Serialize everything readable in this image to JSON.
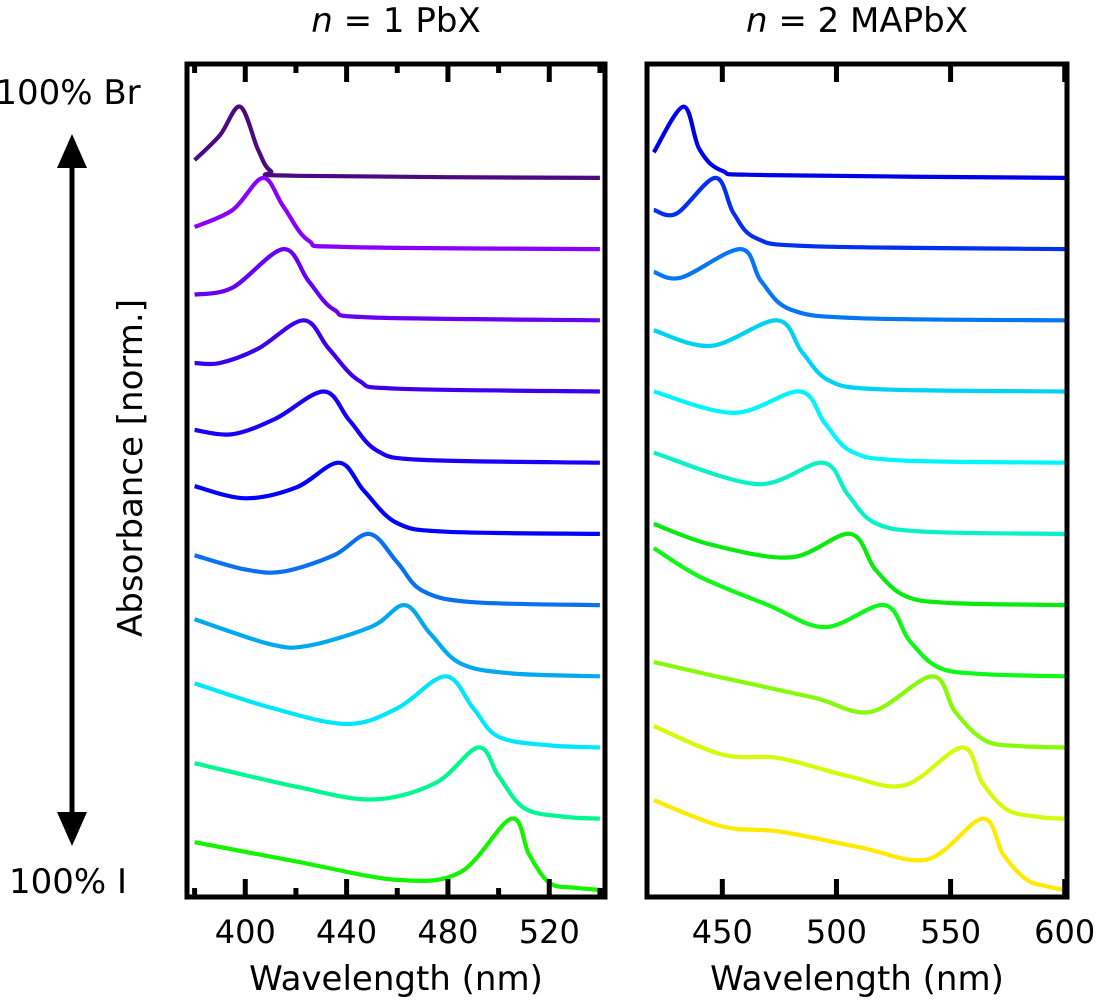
{
  "labels": {
    "top_composition": "100% Br",
    "bottom_composition": "100% I",
    "ylabel": "Absorbance [norm.]"
  },
  "chart_data": [
    {
      "type": "line",
      "title_italic": "n",
      "title_rest": " = 1 PbX",
      "xlabel": "Wavelength (nm)",
      "ylabel": "Absorbance [norm.]",
      "xlim": [
        377,
        542
      ],
      "ylim": [
        -0.1,
        11.6
      ],
      "xticks": [
        400,
        440,
        480,
        520
      ],
      "xminor": [
        380,
        420,
        460,
        500,
        540
      ],
      "stacked_offset": 1,
      "series": [
        {
          "color": "#4b0a82",
          "peak_nm": 398,
          "points": [
            [
              380,
              0.25
            ],
            [
              390,
              0.6
            ],
            [
              398,
              1
            ],
            [
              405,
              0.4
            ],
            [
              410,
              0.1
            ],
            [
              420,
              0.03
            ],
            [
              540,
              0
            ]
          ]
        },
        {
          "color": "#8a00ff",
          "peak_nm": 407,
          "points": [
            [
              380,
              0.31
            ],
            [
              395,
              0.55
            ],
            [
              407,
              1
            ],
            [
              415,
              0.6
            ],
            [
              425,
              0.12
            ],
            [
              440,
              0.03
            ],
            [
              540,
              0
            ]
          ]
        },
        {
          "color": "#6800f2",
          "peak_nm": 415,
          "points": [
            [
              380,
              0.36
            ],
            [
              395,
              0.46
            ],
            [
              415,
              1
            ],
            [
              425,
              0.55
            ],
            [
              435,
              0.15
            ],
            [
              450,
              0.04
            ],
            [
              540,
              0
            ]
          ]
        },
        {
          "color": "#3c00ee",
          "peak_nm": 423,
          "points": [
            [
              380,
              0.4
            ],
            [
              390,
              0.4
            ],
            [
              405,
              0.6
            ],
            [
              423,
              1
            ],
            [
              433,
              0.6
            ],
            [
              445,
              0.15
            ],
            [
              460,
              0.04
            ],
            [
              540,
              0
            ]
          ]
        },
        {
          "color": "#1a00f4",
          "peak_nm": 431,
          "points": [
            [
              380,
              0.46
            ],
            [
              395,
              0.4
            ],
            [
              412,
              0.62
            ],
            [
              431,
              1
            ],
            [
              441,
              0.6
            ],
            [
              452,
              0.17
            ],
            [
              470,
              0.04
            ],
            [
              540,
              0
            ]
          ]
        },
        {
          "color": "#0000ff",
          "peak_nm": 437,
          "points": [
            [
              380,
              0.67
            ],
            [
              400,
              0.5
            ],
            [
              420,
              0.65
            ],
            [
              437,
              1
            ],
            [
              447,
              0.6
            ],
            [
              460,
              0.15
            ],
            [
              480,
              0.03
            ],
            [
              540,
              0
            ]
          ]
        },
        {
          "color": "#0a70f0",
          "peak_nm": 449,
          "points": [
            [
              380,
              0.7
            ],
            [
              400,
              0.5
            ],
            [
              415,
              0.47
            ],
            [
              435,
              0.7
            ],
            [
              449,
              1
            ],
            [
              460,
              0.6
            ],
            [
              470,
              0.2
            ],
            [
              490,
              0.04
            ],
            [
              540,
              0
            ]
          ]
        },
        {
          "color": "#04a8ee",
          "peak_nm": 463,
          "points": [
            [
              380,
              0.8
            ],
            [
              410,
              0.45
            ],
            [
              425,
              0.43
            ],
            [
              450,
              0.7
            ],
            [
              463,
              1
            ],
            [
              473,
              0.6
            ],
            [
              485,
              0.18
            ],
            [
              505,
              0.04
            ],
            [
              540,
              0
            ]
          ]
        },
        {
          "color": "#00e6fa",
          "peak_nm": 479,
          "points": [
            [
              380,
              0.9
            ],
            [
              410,
              0.56
            ],
            [
              440,
              0.33
            ],
            [
              460,
              0.55
            ],
            [
              479,
              1
            ],
            [
              490,
              0.55
            ],
            [
              500,
              0.15
            ],
            [
              520,
              0.03
            ],
            [
              540,
              0
            ]
          ]
        },
        {
          "color": "#00f890",
          "peak_nm": 492,
          "points": [
            [
              380,
              0.78
            ],
            [
              420,
              0.45
            ],
            [
              450,
              0.27
            ],
            [
              475,
              0.5
            ],
            [
              492,
              1
            ],
            [
              500,
              0.6
            ],
            [
              510,
              0.15
            ],
            [
              525,
              0.03
            ],
            [
              540,
              0
            ]
          ]
        },
        {
          "color": "#14f400",
          "peak_nm": 505,
          "points": [
            [
              380,
              0.67
            ],
            [
              420,
              0.4
            ],
            [
              460,
              0.14
            ],
            [
              485,
              0.25
            ],
            [
              505,
              1
            ],
            [
              512,
              0.5
            ],
            [
              520,
              0.1
            ],
            [
              530,
              0.03
            ],
            [
              540,
              0
            ]
          ]
        }
      ]
    },
    {
      "type": "line",
      "title_italic": "n",
      "title_rest": " = 2 MAPbX",
      "xlabel": "Wavelength (nm)",
      "ylabel": "Absorbance [norm.]",
      "xlim": [
        417,
        601
      ],
      "ylim": [
        -0.1,
        11.6
      ],
      "xticks": [
        450,
        500,
        550,
        600
      ],
      "xminor": [],
      "stacked_offset": 1,
      "series": [
        {
          "color": "#0000e8",
          "peak_nm": 433,
          "points": [
            [
              420,
              0.36
            ],
            [
              433,
              1
            ],
            [
              440,
              0.4
            ],
            [
              450,
              0.1
            ],
            [
              470,
              0.04
            ],
            [
              600,
              0
            ]
          ]
        },
        {
          "color": "#0230ee",
          "peak_nm": 447,
          "points": [
            [
              420,
              0.55
            ],
            [
              430,
              0.5
            ],
            [
              447,
              1
            ],
            [
              455,
              0.5
            ],
            [
              465,
              0.15
            ],
            [
              490,
              0.04
            ],
            [
              600,
              0
            ]
          ]
        },
        {
          "color": "#0676f2",
          "peak_nm": 458,
          "points": [
            [
              420,
              0.68
            ],
            [
              432,
              0.6
            ],
            [
              458,
              1
            ],
            [
              467,
              0.55
            ],
            [
              480,
              0.15
            ],
            [
              510,
              0.03
            ],
            [
              600,
              0
            ]
          ]
        },
        {
          "color": "#00d2f2",
          "peak_nm": 474,
          "points": [
            [
              420,
              0.86
            ],
            [
              445,
              0.64
            ],
            [
              474,
              1
            ],
            [
              485,
              0.55
            ],
            [
              497,
              0.15
            ],
            [
              520,
              0.03
            ],
            [
              600,
              0
            ]
          ]
        },
        {
          "color": "#00f6fc",
          "peak_nm": 484,
          "points": [
            [
              420,
              1.0
            ],
            [
              455,
              0.7
            ],
            [
              484,
              1
            ],
            [
              495,
              0.55
            ],
            [
              507,
              0.15
            ],
            [
              530,
              0.03
            ],
            [
              600,
              0
            ]
          ]
        },
        {
          "color": "#0af0c8",
          "peak_nm": 494,
          "points": [
            [
              420,
              1.14
            ],
            [
              465,
              0.7
            ],
            [
              494,
              1
            ],
            [
              505,
              0.55
            ],
            [
              517,
              0.15
            ],
            [
              540,
              0.03
            ],
            [
              600,
              0
            ]
          ]
        },
        {
          "color": "#08ea10",
          "peak_nm": 506,
          "points": [
            [
              420,
              1.14
            ],
            [
              445,
              0.85
            ],
            [
              480,
              0.67
            ],
            [
              506,
              1
            ],
            [
              517,
              0.5
            ],
            [
              530,
              0.13
            ],
            [
              550,
              0.03
            ],
            [
              600,
              0
            ]
          ]
        },
        {
          "color": "#10f818",
          "peak_nm": 521,
          "points": [
            [
              420,
              1.8
            ],
            [
              440,
              1.4
            ],
            [
              470,
              1.0
            ],
            [
              495,
              0.69
            ],
            [
              521,
              1
            ],
            [
              532,
              0.5
            ],
            [
              545,
              0.12
            ],
            [
              565,
              0.03
            ],
            [
              600,
              0
            ]
          ]
        },
        {
          "color": "#86fa0a",
          "peak_nm": 542,
          "points": [
            [
              420,
              1.2
            ],
            [
              450,
              0.98
            ],
            [
              490,
              0.7
            ],
            [
              515,
              0.5
            ],
            [
              542,
              1
            ],
            [
              552,
              0.5
            ],
            [
              565,
              0.1
            ],
            [
              580,
              0.02
            ],
            [
              600,
              0
            ]
          ]
        },
        {
          "color": "#d6fa0a",
          "peak_nm": 555,
          "points": [
            [
              420,
              1.3
            ],
            [
              450,
              0.9
            ],
            [
              475,
              0.85
            ],
            [
              505,
              0.6
            ],
            [
              530,
              0.47
            ],
            [
              555,
              1
            ],
            [
              564,
              0.5
            ],
            [
              575,
              0.12
            ],
            [
              590,
              0.02
            ],
            [
              600,
              0
            ]
          ]
        },
        {
          "color": "#ffea00",
          "peak_nm": 564,
          "points": [
            [
              420,
              1.26
            ],
            [
              450,
              0.89
            ],
            [
              475,
              0.82
            ],
            [
              510,
              0.6
            ],
            [
              540,
              0.43
            ],
            [
              564,
              1
            ],
            [
              573,
              0.5
            ],
            [
              583,
              0.15
            ],
            [
              592,
              0.05
            ],
            [
              600,
              0
            ]
          ]
        }
      ]
    }
  ]
}
